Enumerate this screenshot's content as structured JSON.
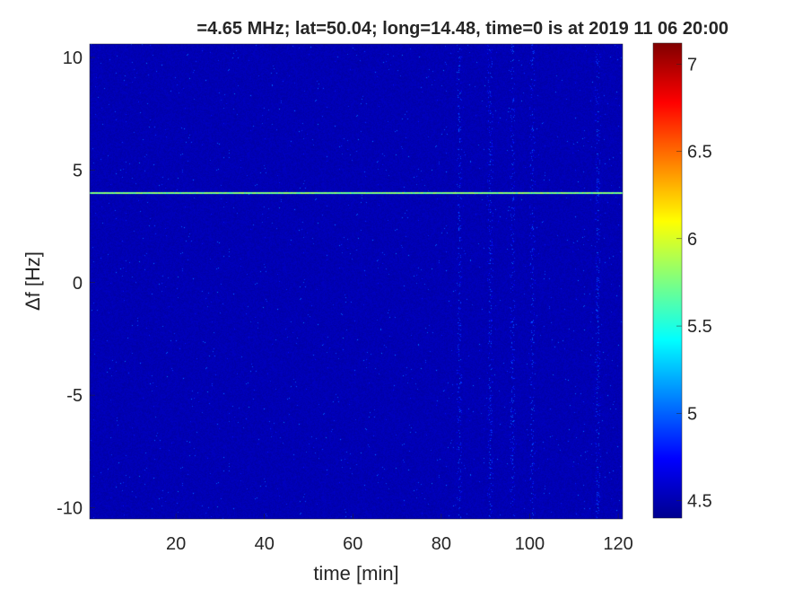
{
  "chart_data": {
    "type": "heatmap",
    "title": "=4.65 MHz;  lat=50.04; long=14.48, time=0 is at 2019 11 06 20:00",
    "xlabel": "time [min]",
    "ylabel": "Δf [Hz]",
    "xlim": [
      0.5,
      121
    ],
    "ylim": [
      -10.5,
      10.6
    ],
    "xticks": [
      20,
      40,
      60,
      80,
      100,
      120
    ],
    "xtick_labels": [
      "20",
      "40",
      "60",
      "80",
      "100",
      "120"
    ],
    "yticks": [
      -10,
      -5,
      0,
      5,
      10
    ],
    "ytick_labels": [
      "-10",
      "-5",
      "0",
      "5",
      "10"
    ],
    "colormap": "jet",
    "clim": [
      4.4,
      7.12
    ],
    "colorbar_ticks": [
      4.5,
      5,
      5.5,
      6,
      6.5,
      7
    ],
    "colorbar_tick_labels": [
      "4.5",
      "5",
      "5.5",
      "6",
      "6.5",
      "7"
    ],
    "background_level": 4.5,
    "signal_line": {
      "df_hz": 4.0,
      "level": 5.9
    },
    "vertical_streaks_min": [
      84,
      91,
      96,
      100.5,
      115.3
    ],
    "grid": false
  }
}
